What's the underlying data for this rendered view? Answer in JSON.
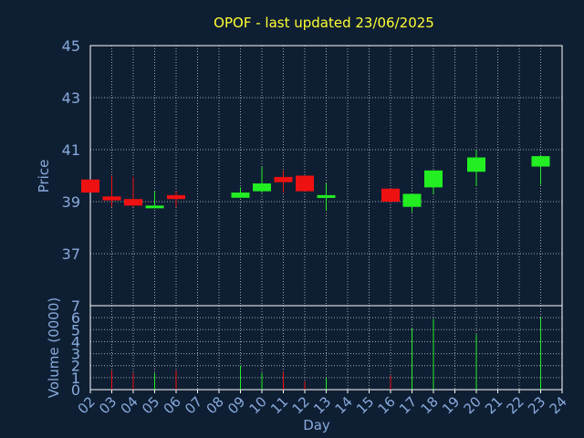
{
  "chart_data": {
    "type": "candlestick",
    "title": "OPOF - last updated 23/06/2025",
    "xlabel": "Day",
    "ylabel_price": "Price",
    "ylabel_volume": "Volume (0000)",
    "x_ticks": [
      "02",
      "03",
      "04",
      "05",
      "06",
      "07",
      "08",
      "09",
      "10",
      "11",
      "12",
      "13",
      "14",
      "15",
      "16",
      "17",
      "18",
      "19",
      "20",
      "21",
      "22",
      "23",
      "24"
    ],
    "price_ticks": [
      37,
      39,
      41,
      43,
      45
    ],
    "price_range": [
      35.0,
      45.0
    ],
    "volume_ticks": [
      0,
      1,
      2,
      3,
      4,
      5,
      6,
      7
    ],
    "volume_range": [
      0,
      7
    ],
    "grid": true,
    "colors": {
      "background": "#0f1f33",
      "title": "#ffff33",
      "axis_text": "#88aadd",
      "grid": "#c8c8c8",
      "up": "#22ee22",
      "down": "#ee1111"
    },
    "candles": [
      {
        "day": "02",
        "open": 39.85,
        "close": 39.35,
        "high": 39.85,
        "low": 39.35,
        "volume": 0.0
      },
      {
        "day": "03",
        "open": 39.2,
        "close": 39.05,
        "high": 40.0,
        "low": 38.8,
        "volume": 1.6
      },
      {
        "day": "04",
        "open": 39.1,
        "close": 38.85,
        "high": 39.95,
        "low": 38.8,
        "volume": 1.4
      },
      {
        "day": "05",
        "open": 38.8,
        "close": 38.85,
        "high": 39.4,
        "low": 38.8,
        "volume": 1.4
      },
      {
        "day": "06",
        "open": 39.25,
        "close": 39.1,
        "high": 39.4,
        "low": 38.8,
        "volume": 1.6
      },
      {
        "day": "09",
        "open": 39.15,
        "close": 39.35,
        "high": 39.55,
        "low": 39.15,
        "volume": 2.0
      },
      {
        "day": "10",
        "open": 39.4,
        "close": 39.7,
        "high": 40.35,
        "low": 39.35,
        "volume": 1.4
      },
      {
        "day": "11",
        "open": 39.95,
        "close": 39.75,
        "high": 40.2,
        "low": 39.35,
        "volume": 1.5
      },
      {
        "day": "12",
        "open": 40.0,
        "close": 39.4,
        "high": 40.0,
        "low": 39.4,
        "volume": 0.7
      },
      {
        "day": "13",
        "open": 39.2,
        "close": 39.25,
        "high": 39.7,
        "low": 38.65,
        "volume": 1.0
      },
      {
        "day": "16",
        "open": 39.5,
        "close": 39.0,
        "high": 39.5,
        "low": 38.95,
        "volume": 1.2
      },
      {
        "day": "17",
        "open": 38.8,
        "close": 39.3,
        "high": 39.3,
        "low": 38.6,
        "volume": 5.1
      },
      {
        "day": "18",
        "open": 39.55,
        "close": 40.2,
        "high": 40.2,
        "low": 39.3,
        "volume": 5.9
      },
      {
        "day": "20",
        "open": 40.15,
        "close": 40.7,
        "high": 41.0,
        "low": 39.6,
        "volume": 4.6
      },
      {
        "day": "23",
        "open": 40.35,
        "close": 40.75,
        "high": 40.8,
        "low": 39.65,
        "volume": 6.0
      }
    ]
  }
}
